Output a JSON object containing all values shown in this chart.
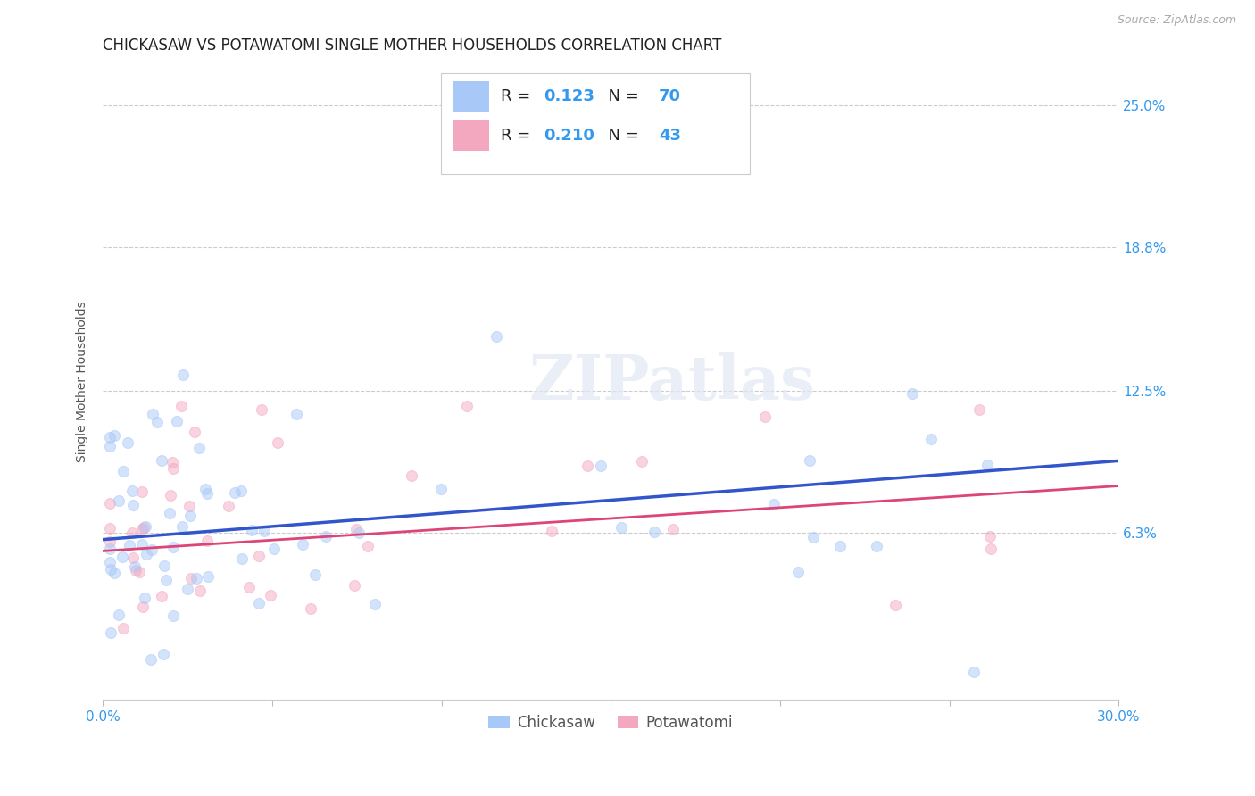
{
  "title": "CHICKASAW VS POTAWATOMI SINGLE MOTHER HOUSEHOLDS CORRELATION CHART",
  "source": "Source: ZipAtlas.com",
  "ylabel": "Single Mother Households",
  "xlim": [
    0.0,
    0.3
  ],
  "ylim": [
    -0.01,
    0.268
  ],
  "ytick_labels_right": [
    "6.3%",
    "12.5%",
    "18.8%",
    "25.0%"
  ],
  "ytick_vals": [
    0.063,
    0.125,
    0.188,
    0.25
  ],
  "chickasaw_color": "#a8c8f8",
  "potawatomi_color": "#f4a8c0",
  "line_chickasaw": "#3355cc",
  "line_potawatomi": "#dd4477",
  "R_chickasaw": 0.123,
  "N_chickasaw": 70,
  "R_potawatomi": 0.21,
  "N_potawatomi": 43,
  "background_color": "#ffffff",
  "grid_color": "#cccccc",
  "marker_size": 75,
  "marker_alpha": 0.5,
  "title_fontsize": 12,
  "ylabel_fontsize": 10,
  "tick_fontsize": 11,
  "source_fontsize": 9,
  "xtick_positions": [
    0.0,
    0.05,
    0.1,
    0.15,
    0.2,
    0.25,
    0.3
  ],
  "line_intercept_blue": 0.06,
  "line_slope_blue": 0.115,
  "line_intercept_pink": 0.055,
  "line_slope_pink": 0.095
}
